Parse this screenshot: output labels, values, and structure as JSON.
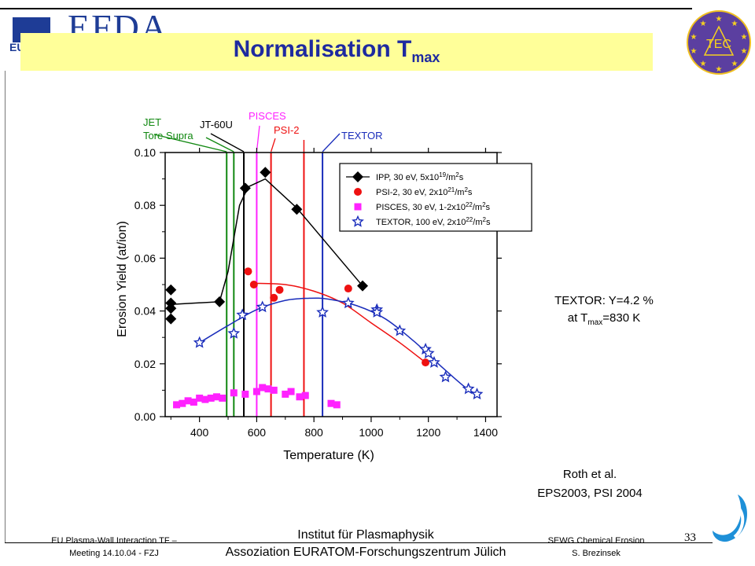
{
  "header": {
    "logo_text": "EFDA",
    "logo_subtext": "EU",
    "title_main": "Normalisation T",
    "title_sub": "max",
    "tec_logo_text": "TEC"
  },
  "annotation": {
    "line1": "TEXTOR: Y=4.2 %",
    "line2_prefix": "at T",
    "line2_sub": "max",
    "line2_suffix": "=830 K"
  },
  "reference": {
    "line1": "Roth et al.",
    "line2": "EPS2003, PSI 2004"
  },
  "footer": {
    "left_line1": "EU Plasma-Wall Interaction TF –",
    "left_line2": "Meeting 14.10.04 - FZJ",
    "center_line1": "Institut für Plasmaphysik",
    "center_line2": "Assoziation EURATOM-Forschungszentrum Jülich",
    "right_line1": "SEWG Chemical Erosion",
    "right_line2": "S. Brezinsek",
    "page_number": "33"
  },
  "colors": {
    "title": "#1e2aa0",
    "banner": "#ffff99",
    "ipp": "#000000",
    "psi2": "#ee1111",
    "pisces": "#ff22ff",
    "textor": "#1a2dbb",
    "jet": "#118811",
    "tore_supra": "#118811",
    "jt60u": "#000000"
  },
  "chart_data": {
    "type": "scatter",
    "xlabel": "Temperature (K)",
    "ylabel": "Erosion Yield (at/ion)",
    "xlim": [
      280,
      1440
    ],
    "ylim": [
      0.0,
      0.1
    ],
    "xticks": [
      400,
      600,
      800,
      1000,
      1200,
      1400
    ],
    "yticks": [
      0.0,
      0.02,
      0.04,
      0.06,
      0.08,
      0.1
    ],
    "xtick_labels": [
      "400",
      "600",
      "800",
      "1000",
      "1200",
      "1400"
    ],
    "ytick_labels": [
      "0.00",
      "0.02",
      "0.04",
      "0.06",
      "0.08",
      "0.10"
    ],
    "grid": false,
    "legend_position": "top-right",
    "series": [
      {
        "key": "ipp",
        "legend_label": "IPP,       30 eV, 5x10",
        "legend_exp": "19",
        "legend_tail": "/m",
        "legend_tail_exp": "2",
        "legend_end": "s",
        "marker": "diamond",
        "color": "#000000",
        "points": [
          [
            300,
            0.048
          ],
          [
            300,
            0.043
          ],
          [
            300,
            0.041
          ],
          [
            300,
            0.037
          ],
          [
            470,
            0.0435
          ],
          [
            560,
            0.0865
          ],
          [
            630,
            0.0925
          ],
          [
            740,
            0.0785
          ],
          [
            970,
            0.0495
          ]
        ],
        "curve": [
          [
            300,
            0.0425
          ],
          [
            470,
            0.0435
          ],
          [
            500,
            0.055
          ],
          [
            540,
            0.08
          ],
          [
            570,
            0.087
          ],
          [
            630,
            0.09
          ],
          [
            740,
            0.079
          ],
          [
            970,
            0.0495
          ]
        ]
      },
      {
        "key": "psi2",
        "legend_label": "PSI-2,     30 eV, 2x10",
        "legend_exp": "21",
        "legend_tail": "/m",
        "legend_tail_exp": "2",
        "legend_end": "s",
        "marker": "circle",
        "color": "#ee1111",
        "points": [
          [
            570,
            0.055
          ],
          [
            590,
            0.05
          ],
          [
            660,
            0.045
          ],
          [
            680,
            0.048
          ],
          [
            920,
            0.0485
          ],
          [
            1190,
            0.0205
          ]
        ],
        "curve": [
          [
            590,
            0.0505
          ],
          [
            700,
            0.05
          ],
          [
            800,
            0.0475
          ],
          [
            900,
            0.043
          ],
          [
            1000,
            0.0355
          ],
          [
            1100,
            0.028
          ],
          [
            1190,
            0.0205
          ]
        ]
      },
      {
        "key": "pisces",
        "legend_label": "PISCES, 30 eV, 1-2x10",
        "legend_exp": "22",
        "legend_tail": "/m",
        "legend_tail_exp": "2",
        "legend_end": "s",
        "marker": "square",
        "color": "#ff22ff",
        "points": [
          [
            320,
            0.0045
          ],
          [
            340,
            0.005
          ],
          [
            360,
            0.006
          ],
          [
            380,
            0.0055
          ],
          [
            400,
            0.007
          ],
          [
            420,
            0.0065
          ],
          [
            440,
            0.007
          ],
          [
            460,
            0.0075
          ],
          [
            480,
            0.007
          ],
          [
            520,
            0.009
          ],
          [
            560,
            0.0085
          ],
          [
            600,
            0.0095
          ],
          [
            620,
            0.011
          ],
          [
            640,
            0.0105
          ],
          [
            660,
            0.01
          ],
          [
            700,
            0.0085
          ],
          [
            720,
            0.0095
          ],
          [
            750,
            0.0075
          ],
          [
            770,
            0.008
          ],
          [
            860,
            0.005
          ],
          [
            880,
            0.0045
          ]
        ]
      },
      {
        "key": "textor",
        "legend_label": "TEXTOR, 100 eV, 2x10",
        "legend_exp": "22",
        "legend_tail": "/m",
        "legend_tail_exp": "2",
        "legend_end": "s",
        "marker": "star",
        "color": "#1a2dbb",
        "points": [
          [
            400,
            0.028
          ],
          [
            520,
            0.0315
          ],
          [
            550,
            0.0385
          ],
          [
            620,
            0.0415
          ],
          [
            830,
            0.0395
          ],
          [
            920,
            0.043
          ],
          [
            1020,
            0.0405
          ],
          [
            1020,
            0.0395
          ],
          [
            1100,
            0.0325
          ],
          [
            1190,
            0.0255
          ],
          [
            1200,
            0.024
          ],
          [
            1220,
            0.0205
          ],
          [
            1260,
            0.015
          ],
          [
            1340,
            0.0105
          ],
          [
            1370,
            0.0085
          ]
        ],
        "curve": [
          [
            400,
            0.028
          ],
          [
            500,
            0.0345
          ],
          [
            600,
            0.0405
          ],
          [
            700,
            0.044
          ],
          [
            780,
            0.0448
          ],
          [
            850,
            0.0445
          ],
          [
            950,
            0.042
          ],
          [
            1050,
            0.037
          ],
          [
            1150,
            0.0285
          ],
          [
            1250,
            0.0185
          ],
          [
            1330,
            0.011
          ],
          [
            1370,
            0.0085
          ]
        ]
      }
    ],
    "device_lines": [
      {
        "key": "jet",
        "label": "JET",
        "label2": "",
        "t": 495,
        "color": "#118811"
      },
      {
        "key": "tore_supra",
        "label": "Tore Supra",
        "label2": "",
        "t": 520,
        "color": "#118811"
      },
      {
        "key": "jt60u",
        "label": "JT-60U",
        "label2": "",
        "t": 555,
        "color": "#000000"
      },
      {
        "key": "pisces",
        "label": "PISCES",
        "label2": "",
        "t": 600,
        "color": "#ff22ff"
      },
      {
        "key": "psi2",
        "label": "PSI-2",
        "label2": "",
        "t": 650,
        "color": "#ee1111"
      },
      {
        "key": "psi2b",
        "label": "",
        "label2": "",
        "t": 765,
        "color": "#ee1111"
      },
      {
        "key": "textor",
        "label": "TEXTOR",
        "label2": "",
        "t": 830,
        "color": "#1a2dbb"
      }
    ]
  }
}
